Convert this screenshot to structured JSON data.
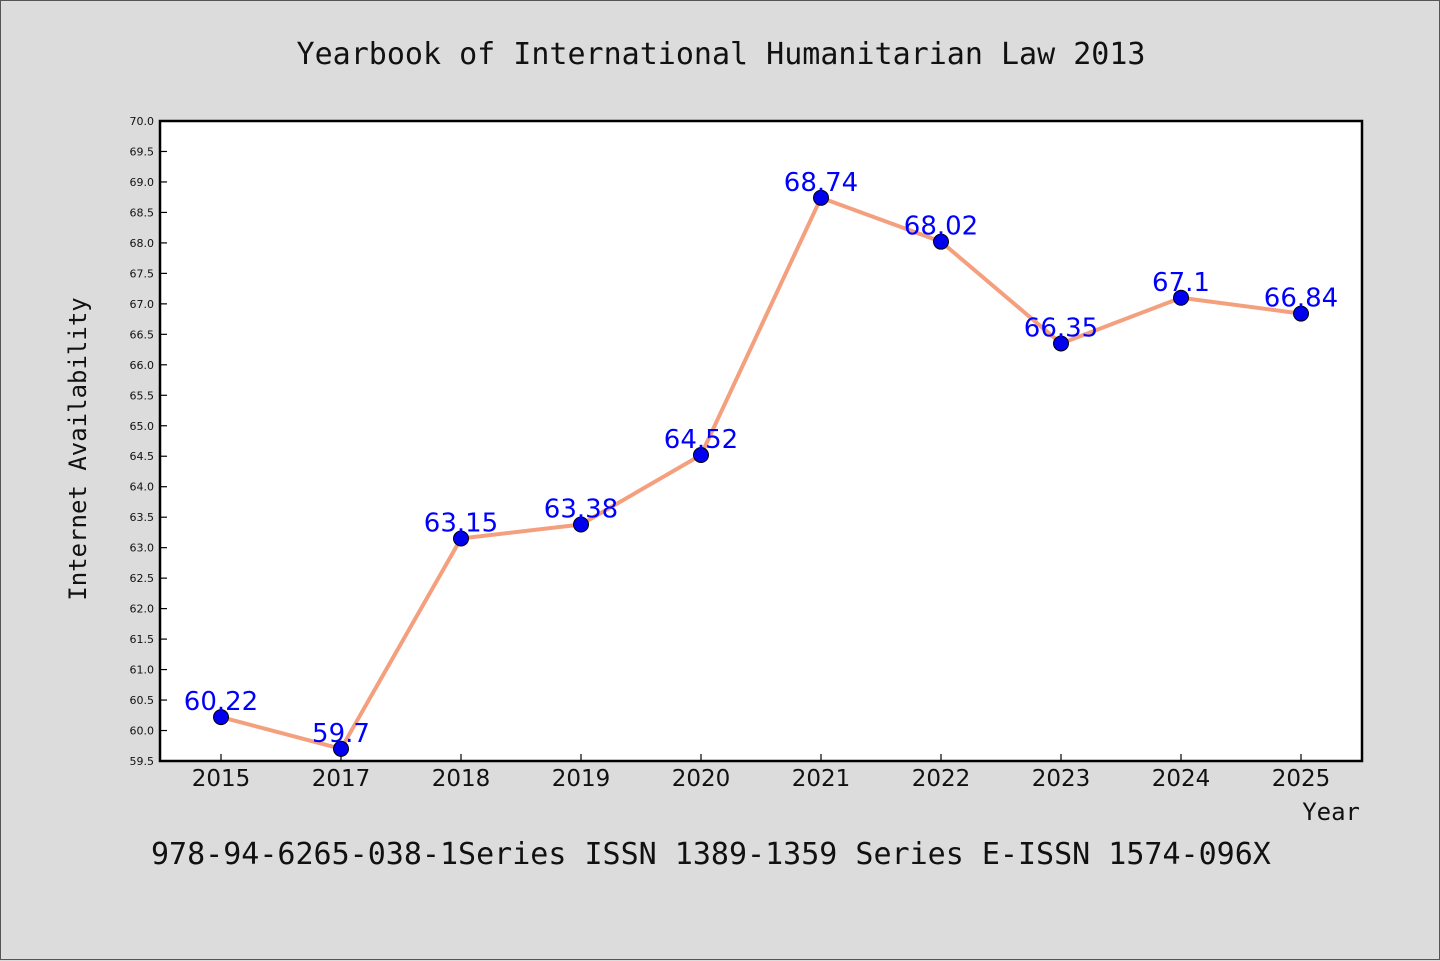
{
  "chart_data": {
    "type": "line",
    "title": "Yearbook of International Humanitarian Law 2013",
    "xlabel": "Year",
    "ylabel": "Internet Availability",
    "categories": [
      "2015",
      "2017",
      "2018",
      "2019",
      "2020",
      "2021",
      "2022",
      "2023",
      "2024",
      "2025"
    ],
    "series": [
      {
        "values": [
          60.22,
          59.7,
          63.15,
          63.38,
          64.52,
          68.74,
          68.02,
          66.35,
          67.1,
          66.84
        ]
      }
    ],
    "data_labels": [
      "60.22",
      "59.7",
      "63.15",
      "63.38",
      "64.52",
      "68.74",
      "68.02",
      "66.35",
      "67.1",
      "66.84"
    ],
    "ylim": [
      59.5,
      70.0
    ],
    "yticks": [
      "59.5",
      "60.0",
      "60.5",
      "61.0",
      "61.5",
      "62.0",
      "62.5",
      "63.0",
      "63.5",
      "64.0",
      "64.5",
      "65.0",
      "65.5",
      "66.0",
      "66.5",
      "67.0",
      "67.5",
      "68.0",
      "68.5",
      "69.0",
      "69.5",
      "70.0"
    ],
    "grid": false,
    "legend": "none",
    "colors": {
      "line": "#f4a07e",
      "marker": "#0000ee",
      "label": "#0000ff",
      "background": "#dcdcdc",
      "plot_background": "#ffffff"
    }
  },
  "footer": {
    "text": "978-94-6265-038-1Series ISSN 1389-1359 Series E-ISSN 1574-096X"
  }
}
